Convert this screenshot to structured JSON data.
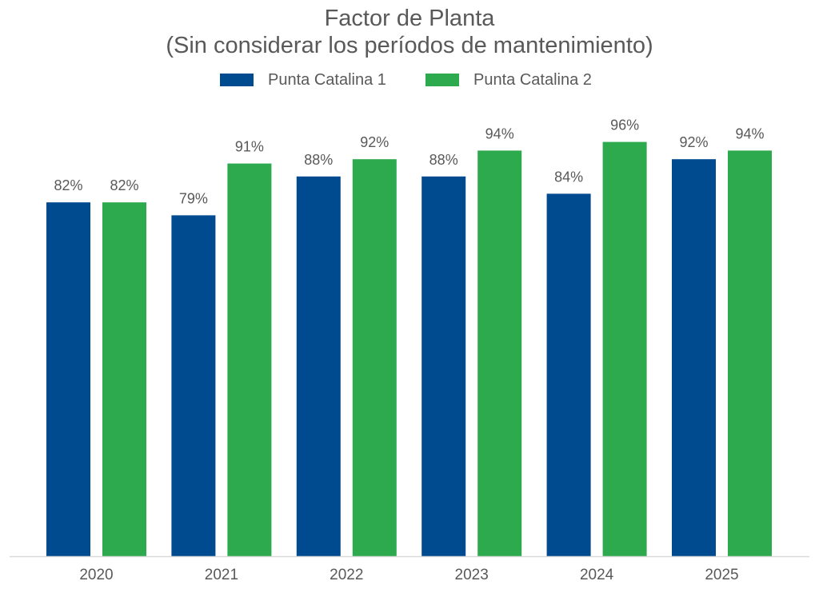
{
  "chart_data": {
    "type": "bar",
    "title": "Factor de Planta",
    "subtitle": "(Sin considerar los períodos de mantenimiento)",
    "categories": [
      "2020",
      "2021",
      "2022",
      "2023",
      "2024",
      "2025"
    ],
    "series": [
      {
        "name": "Punta Catalina 1",
        "color": "#004a8f",
        "values": [
          82,
          79,
          88,
          88,
          84,
          92
        ],
        "labels": [
          "82%",
          "79%",
          "88%",
          "88%",
          "84%",
          "92%"
        ]
      },
      {
        "name": "Punta Catalina 2",
        "color": "#2eaa4e",
        "values": [
          82,
          91,
          92,
          94,
          96,
          94
        ],
        "labels": [
          "82%",
          "91%",
          "92%",
          "94%",
          "96%",
          "94%"
        ]
      }
    ],
    "xlabel": "",
    "ylabel": "",
    "ylim": [
      0,
      100
    ],
    "grid": false,
    "legend_position": "top-center",
    "axis_color": "#d9d9d9",
    "text_color": "#595959"
  }
}
